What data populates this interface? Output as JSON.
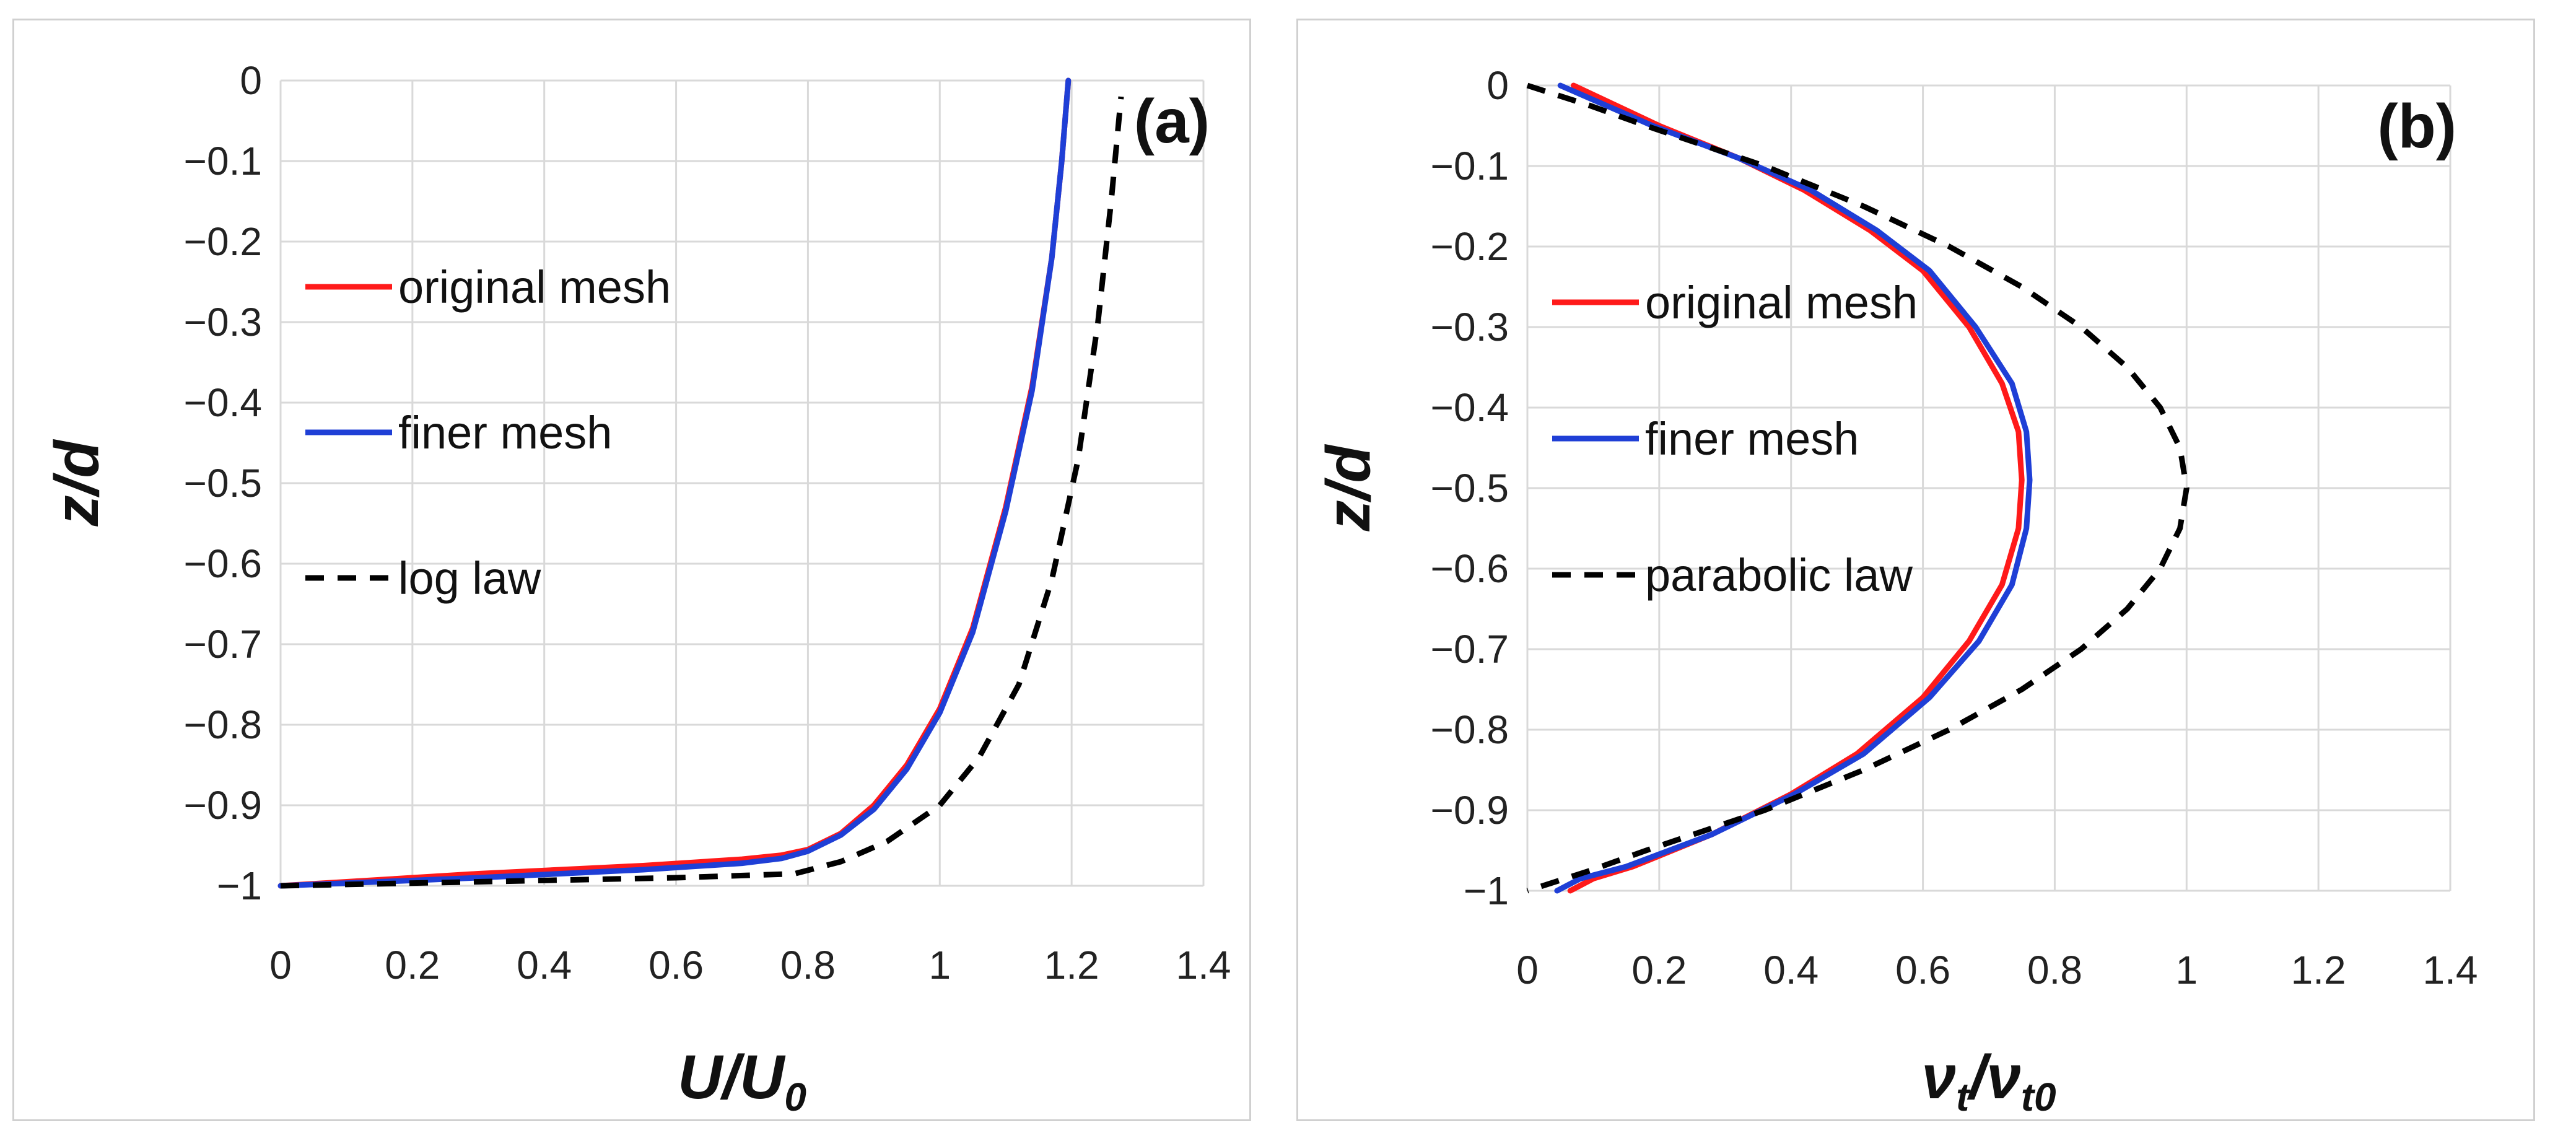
{
  "chart_data": [
    {
      "type": "line",
      "panel_label": "(a)",
      "xlabel": "U/U",
      "xlabel_sub": "0",
      "ylabel": "z/d",
      "xlim": [
        0,
        1.4
      ],
      "ylim": [
        -1,
        0
      ],
      "x_ticks": [
        0,
        0.2,
        0.4,
        0.6,
        0.8,
        1,
        1.2,
        1.4
      ],
      "x_tick_labels": [
        "0",
        "0.2",
        "0.4",
        "0.6",
        "0.8",
        "1",
        "1.2",
        "1.4"
      ],
      "y_ticks": [
        0,
        -0.1,
        -0.2,
        -0.3,
        -0.4,
        -0.5,
        -0.6,
        -0.7,
        -0.8,
        -0.9,
        -1
      ],
      "y_tick_labels": [
        "0",
        "−0.1",
        "−0.2",
        "−0.3",
        "−0.4",
        "−0.5",
        "−0.6",
        "−0.7",
        "−0.8",
        "−0.9",
        "−1"
      ],
      "grid": true,
      "legend_position": "center-left",
      "series": [
        {
          "name": "original mesh",
          "color": "#ff1a1a",
          "dash": "solid",
          "x": [
            0,
            0.3,
            0.55,
            0.7,
            0.76,
            0.8,
            0.85,
            0.9,
            0.95,
            1.0,
            1.05,
            1.1,
            1.14,
            1.17,
            1.185,
            1.195
          ],
          "y": [
            -1,
            -0.985,
            -0.975,
            -0.967,
            -0.962,
            -0.955,
            -0.935,
            -0.9,
            -0.85,
            -0.78,
            -0.68,
            -0.53,
            -0.38,
            -0.22,
            -0.1,
            0
          ]
        },
        {
          "name": "finer mesh",
          "color": "#1f3fd6",
          "dash": "solid",
          "x": [
            0,
            0.3,
            0.55,
            0.7,
            0.76,
            0.8,
            0.85,
            0.9,
            0.95,
            1.0,
            1.05,
            1.1,
            1.14,
            1.17,
            1.185,
            1.195
          ],
          "y": [
            -1,
            -0.99,
            -0.98,
            -0.972,
            -0.966,
            -0.957,
            -0.937,
            -0.905,
            -0.855,
            -0.785,
            -0.685,
            -0.535,
            -0.385,
            -0.22,
            -0.1,
            0
          ]
        },
        {
          "name": "log law",
          "color": "#000000",
          "dash": "dashed",
          "x": [
            0,
            0.3,
            0.6,
            0.78,
            0.85,
            0.92,
            1.0,
            1.06,
            1.12,
            1.17,
            1.21,
            1.24,
            1.26,
            1.275
          ],
          "y": [
            -1,
            -0.995,
            -0.99,
            -0.985,
            -0.97,
            -0.945,
            -0.9,
            -0.84,
            -0.75,
            -0.62,
            -0.47,
            -0.3,
            -0.15,
            -0.02
          ]
        }
      ]
    },
    {
      "type": "line",
      "panel_label": "(b)",
      "xlabel": "ν",
      "xlabel_sub1": "t",
      "xlabel_sep": "/ν",
      "xlabel_sub2": "t0",
      "ylabel": "z/d",
      "xlim": [
        0,
        1.4
      ],
      "ylim": [
        -1,
        0
      ],
      "x_ticks": [
        0,
        0.2,
        0.4,
        0.6,
        0.8,
        1,
        1.2,
        1.4
      ],
      "x_tick_labels": [
        "0",
        "0.2",
        "0.4",
        "0.6",
        "0.8",
        "1",
        "1.2",
        "1.4"
      ],
      "y_ticks": [
        0,
        -0.1,
        -0.2,
        -0.3,
        -0.4,
        -0.5,
        -0.6,
        -0.7,
        -0.8,
        -0.9,
        -1
      ],
      "y_tick_labels": [
        "0",
        "−0.1",
        "−0.2",
        "−0.3",
        "−0.4",
        "−0.5",
        "−0.6",
        "−0.7",
        "−0.8",
        "−0.9",
        "−1"
      ],
      "grid": true,
      "legend_position": "center-left",
      "series": [
        {
          "name": "original mesh",
          "color": "#ff1a1a",
          "dash": "solid",
          "x": [
            0.07,
            0.2,
            0.32,
            0.42,
            0.52,
            0.6,
            0.67,
            0.72,
            0.745,
            0.75,
            0.745,
            0.72,
            0.67,
            0.6,
            0.5,
            0.4,
            0.28,
            0.16,
            0.1,
            0.065
          ],
          "y": [
            0,
            -0.05,
            -0.09,
            -0.13,
            -0.18,
            -0.23,
            -0.3,
            -0.37,
            -0.43,
            -0.49,
            -0.55,
            -0.62,
            -0.69,
            -0.76,
            -0.83,
            -0.88,
            -0.93,
            -0.97,
            -0.985,
            -1
          ]
        },
        {
          "name": "finer mesh",
          "color": "#1f3fd6",
          "dash": "solid",
          "x": [
            0.05,
            0.19,
            0.32,
            0.43,
            0.53,
            0.61,
            0.68,
            0.735,
            0.757,
            0.762,
            0.757,
            0.735,
            0.685,
            0.61,
            0.51,
            0.405,
            0.28,
            0.15,
            0.08,
            0.045
          ],
          "y": [
            0,
            -0.05,
            -0.09,
            -0.13,
            -0.18,
            -0.23,
            -0.3,
            -0.37,
            -0.43,
            -0.49,
            -0.55,
            -0.62,
            -0.69,
            -0.76,
            -0.83,
            -0.88,
            -0.93,
            -0.97,
            -0.985,
            -1
          ]
        },
        {
          "name": "parabolic law",
          "color": "#000000",
          "dash": "dashed",
          "x": [
            0,
            0.095,
            0.18,
            0.36,
            0.51,
            0.64,
            0.75,
            0.84,
            0.91,
            0.96,
            0.99,
            1.0,
            0.99,
            0.96,
            0.91,
            0.84,
            0.75,
            0.64,
            0.51,
            0.36,
            0.18,
            0.095,
            0
          ],
          "y": [
            0,
            -0.025,
            -0.05,
            -0.1,
            -0.15,
            -0.2,
            -0.25,
            -0.3,
            -0.35,
            -0.4,
            -0.45,
            -0.5,
            -0.55,
            -0.6,
            -0.65,
            -0.7,
            -0.75,
            -0.8,
            -0.85,
            -0.9,
            -0.95,
            -0.975,
            -1
          ]
        }
      ]
    }
  ]
}
